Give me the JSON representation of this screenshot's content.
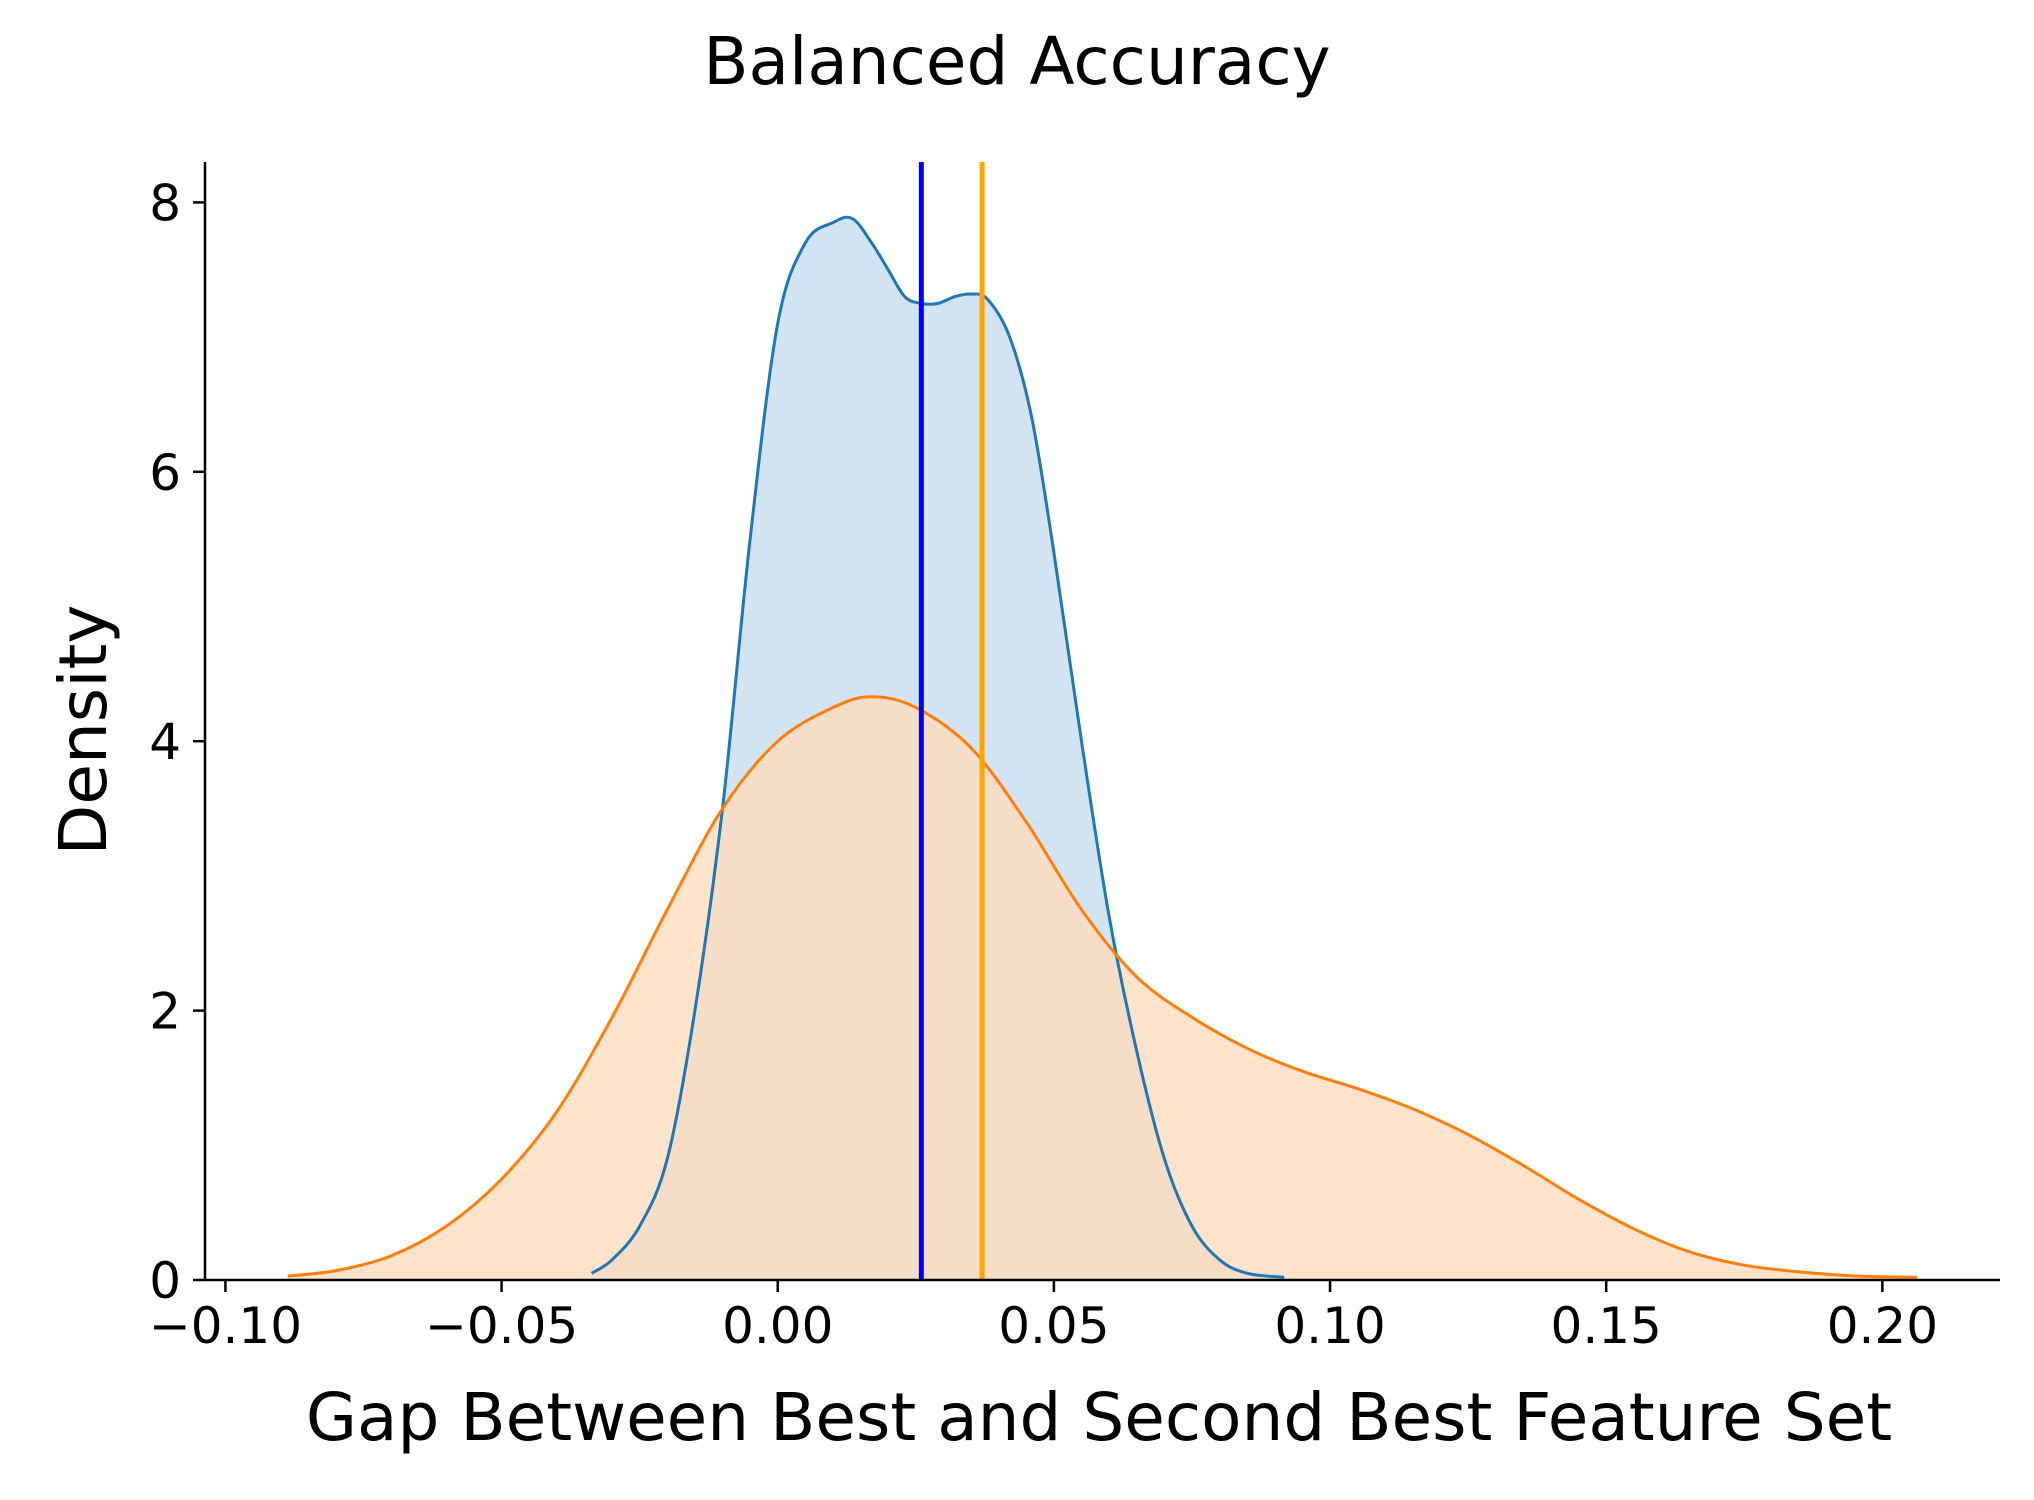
{
  "chart_data": {
    "type": "area",
    "title": "Balanced Accuracy",
    "xlabel": "Gap Between Best and Second Best Feature Set",
    "ylabel": "Density",
    "xlim": [
      -0.1037,
      0.2213
    ],
    "ylim": [
      0,
      8.3
    ],
    "x_ticks": [
      -0.1,
      -0.05,
      0.0,
      0.05,
      0.1,
      0.15,
      0.2
    ],
    "x_tick_labels": [
      "−0.10",
      "−0.05",
      "0.00",
      "0.05",
      "0.10",
      "0.15",
      "0.20"
    ],
    "y_ticks": [
      0,
      2,
      4,
      6,
      8
    ],
    "y_tick_labels": [
      "0",
      "2",
      "4",
      "6",
      "8"
    ],
    "grid": false,
    "series": [
      {
        "color": "#1f77b4",
        "fill": "#c5dcee",
        "x": [
          -0.0337,
          -0.03,
          -0.025,
          -0.02,
          -0.015,
          -0.01,
          -0.005,
          0.0,
          0.005,
          0.01,
          0.0135,
          0.017,
          0.02,
          0.023,
          0.026,
          0.029,
          0.032,
          0.035,
          0.038,
          0.042,
          0.046,
          0.05,
          0.055,
          0.06,
          0.065,
          0.07,
          0.075,
          0.08,
          0.085,
          0.0917
        ],
        "y": [
          0.05,
          0.15,
          0.4,
          0.9,
          2.0,
          3.5,
          5.5,
          7.1,
          7.7,
          7.85,
          7.88,
          7.7,
          7.5,
          7.3,
          7.25,
          7.25,
          7.3,
          7.32,
          7.28,
          7.0,
          6.4,
          5.4,
          4.0,
          2.7,
          1.7,
          0.9,
          0.4,
          0.15,
          0.05,
          0.02
        ]
      },
      {
        "color": "#ff7f0e",
        "fill": "#ffdbbd",
        "x": [
          -0.0887,
          -0.08,
          -0.07,
          -0.06,
          -0.05,
          -0.04,
          -0.03,
          -0.02,
          -0.01,
          0.0,
          0.01,
          0.017,
          0.025,
          0.035,
          0.045,
          0.055,
          0.065,
          0.075,
          0.085,
          0.095,
          0.105,
          0.115,
          0.125,
          0.135,
          0.145,
          0.155,
          0.165,
          0.175,
          0.185,
          0.195,
          0.2063
        ],
        "y": [
          0.03,
          0.07,
          0.18,
          0.4,
          0.75,
          1.25,
          1.95,
          2.75,
          3.5,
          4.0,
          4.25,
          4.33,
          4.25,
          3.95,
          3.4,
          2.75,
          2.25,
          1.95,
          1.72,
          1.55,
          1.42,
          1.27,
          1.08,
          0.85,
          0.6,
          0.38,
          0.21,
          0.11,
          0.06,
          0.03,
          0.02
        ]
      }
    ],
    "vlines": [
      {
        "x": 0.026,
        "color": "#0000ff"
      },
      {
        "x": 0.037,
        "color": "#ffa500"
      }
    ]
  }
}
